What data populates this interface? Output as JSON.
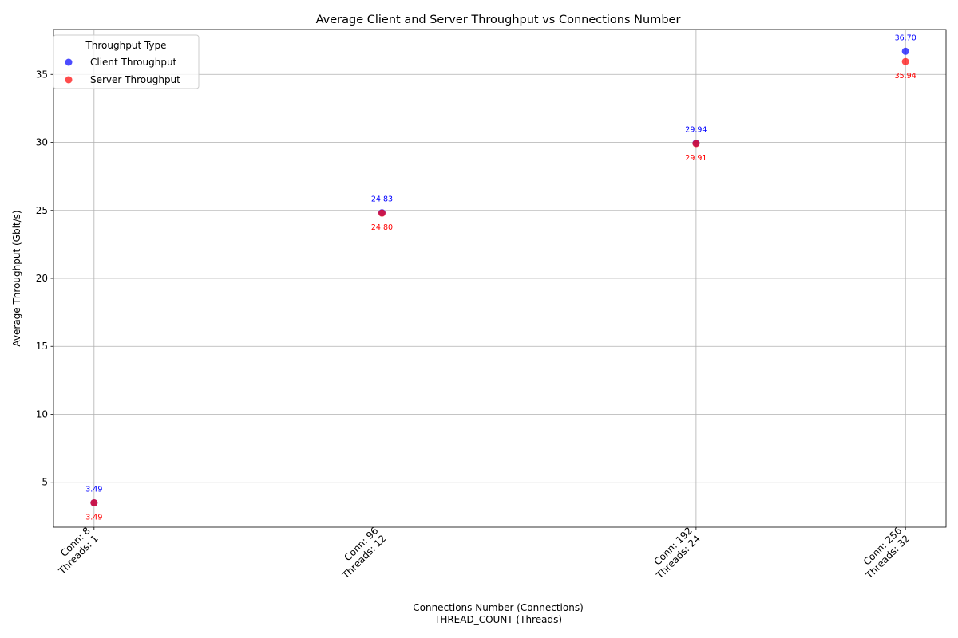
{
  "chart_data": {
    "type": "scatter",
    "title": "Average Client and Server Throughput vs Connections Number",
    "xlabel_line1": "Connections Number (Connections)",
    "xlabel_line2": "THREAD_COUNT (Threads)",
    "ylabel": "Average Throughput (Gbit/s)",
    "x": [
      8,
      96,
      192,
      256
    ],
    "xtick_labels": [
      [
        "Conn: 8",
        "Threads: 1"
      ],
      [
        "Conn: 96",
        "Threads: 12"
      ],
      [
        "Conn: 192",
        "Threads: 24"
      ],
      [
        "Conn: 256",
        "Threads: 32"
      ]
    ],
    "yticks": [
      5,
      10,
      15,
      20,
      25,
      30,
      35
    ],
    "xlim": [
      -4.4,
      268.4
    ],
    "ylim": [
      1.7,
      38.3
    ],
    "grid": true,
    "legend": {
      "title": "Throughput Type",
      "placement": "upper-left"
    },
    "series": [
      {
        "name": "Client Throughput",
        "color": "#0000ff",
        "values": [
          3.49,
          24.83,
          29.94,
          36.7
        ],
        "labels": [
          "3.49",
          "24.83",
          "29.94",
          "36.70"
        ],
        "label_position": "above"
      },
      {
        "name": "Server Throughput",
        "color": "#ff0000",
        "values": [
          3.49,
          24.8,
          29.91,
          35.94
        ],
        "labels": [
          "3.49",
          "24.80",
          "29.91",
          "35.94"
        ],
        "label_position": "below"
      }
    ]
  }
}
